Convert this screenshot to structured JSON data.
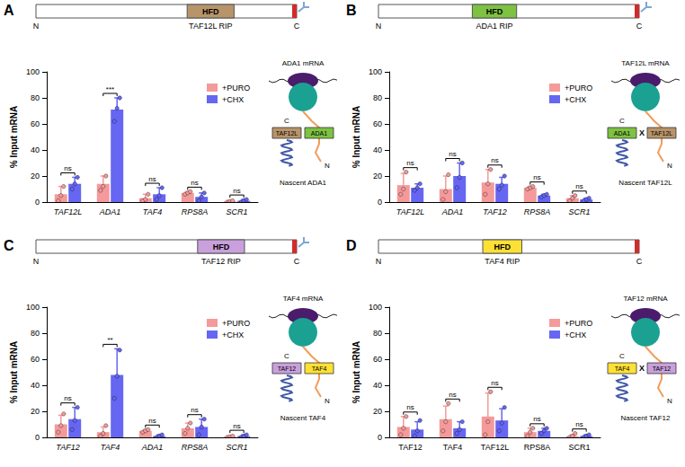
{
  "chart_data": [
    {
      "type": "bar",
      "panel": "A",
      "diagram": {
        "domain": "HFD",
        "label": "TAF12L RIP",
        "n_label": "N",
        "c_label": "C",
        "color": "#b8946a"
      },
      "categories": [
        "TAF12L",
        "ADA1",
        "TAF4",
        "RPS8A",
        "SCR1"
      ],
      "series": [
        {
          "name": "+PURO",
          "color": "#f49a9a",
          "values": [
            6,
            14,
            3,
            7,
            0.5
          ],
          "errors": [
            6,
            6,
            3,
            1,
            0.5
          ],
          "points": [
            [
              1,
              5,
              12
            ],
            [
              9,
              12,
              20
            ],
            [
              1,
              2,
              6
            ],
            [
              6,
              7,
              8
            ],
            [
              0,
              0.5,
              1
            ]
          ]
        },
        {
          "name": "+CHX",
          "color": "#6666f2",
          "values": [
            14,
            71,
            6,
            4,
            1
          ],
          "errors": [
            5,
            9,
            5,
            3,
            1
          ],
          "points": [
            [
              10,
              14,
              19
            ],
            [
              62,
              72,
              80
            ],
            [
              2,
              5,
              11
            ],
            [
              1,
              4,
              7
            ],
            [
              0,
              1,
              2
            ]
          ]
        }
      ],
      "significance": [
        "ns",
        "***",
        "ns",
        "ns",
        "ns"
      ],
      "y_label": "% Input mRNA",
      "ylim": [
        0,
        100
      ],
      "yticks": [
        0,
        20,
        40,
        60,
        80,
        100
      ],
      "grid": false,
      "legend": "top-right",
      "cartoon": {
        "mrna": "ADA1 mRNA",
        "nascent": "Nascent ADA1",
        "c_label": "C",
        "n_label": "N",
        "boxes": [
          {
            "label": "TAF12L",
            "color": "#b8946a"
          },
          {
            "label": "ADA1",
            "color": "#7dc242"
          }
        ]
      }
    },
    {
      "type": "bar",
      "panel": "B",
      "diagram": {
        "domain": "HFD",
        "label": "ADA1 RIP",
        "n_label": "N",
        "c_label": "C",
        "color": "#7dc242"
      },
      "categories": [
        "TAF12L",
        "ADA1",
        "TAF12",
        "RPS8A",
        "SCR1"
      ],
      "series": [
        {
          "name": "+PURO",
          "color": "#f49a9a",
          "values": [
            13,
            10,
            15,
            11,
            3
          ],
          "errors": [
            9,
            10,
            10,
            1,
            2
          ],
          "points": [
            [
              6,
              10,
              23
            ],
            [
              2,
              8,
              21
            ],
            [
              6,
              14,
              25
            ],
            [
              10,
              11,
              12
            ],
            [
              1,
              3,
              5
            ]
          ]
        },
        {
          "name": "+CHX",
          "color": "#6666f2",
          "values": [
            11,
            20,
            14,
            5,
            2
          ],
          "errors": [
            3,
            10,
            5,
            1,
            1
          ],
          "points": [
            [
              9,
              11,
              14
            ],
            [
              11,
              19,
              30
            ],
            [
              10,
              13,
              20
            ],
            [
              4,
              5,
              6
            ],
            [
              1,
              2,
              3
            ]
          ]
        }
      ],
      "significance": [
        "ns",
        "ns",
        "ns",
        "ns",
        "ns"
      ],
      "y_label": "% Input mRNA",
      "ylim": [
        0,
        100
      ],
      "yticks": [
        0,
        20,
        40,
        60,
        80,
        100
      ],
      "grid": false,
      "legend": "top-right",
      "cartoon": {
        "mrna": "TAF12L mRNA",
        "nascent": "Nascent TAF12L",
        "c_label": "C",
        "n_label": "N",
        "no_binding_mark": "X",
        "boxes": [
          {
            "label": "ADA1",
            "color": "#7dc242"
          },
          {
            "label": "TAF12L",
            "color": "#b8946a"
          }
        ]
      }
    },
    {
      "type": "bar",
      "panel": "C",
      "diagram": {
        "domain": "HFD",
        "label": "TAF12 RIP",
        "n_label": "N",
        "c_label": "C",
        "color": "#c9a0dc"
      },
      "categories": [
        "TAF12",
        "TAF4",
        "ADA1",
        "RPS8A",
        "SCR1"
      ],
      "series": [
        {
          "name": "+PURO",
          "color": "#f49a9a",
          "values": [
            10,
            4,
            5,
            7,
            0.5
          ],
          "errors": [
            7,
            4,
            1,
            4,
            0.5
          ],
          "points": [
            [
              4,
              9,
              18
            ],
            [
              1,
              3,
              9
            ],
            [
              4,
              5,
              6
            ],
            [
              3,
              7,
              11
            ],
            [
              0,
              0.5,
              1
            ]
          ]
        },
        {
          "name": "+CHX",
          "color": "#6666f2",
          "values": [
            14,
            48,
            1,
            8,
            1
          ],
          "errors": [
            9,
            20,
            1,
            6,
            1
          ],
          "points": [
            [
              6,
              13,
              23
            ],
            [
              30,
              47,
              67
            ],
            [
              0,
              1,
              2
            ],
            [
              2,
              8,
              14
            ],
            [
              0,
              1,
              2
            ]
          ]
        }
      ],
      "significance": [
        "ns",
        "**",
        "ns",
        "ns",
        "ns"
      ],
      "y_label": "% Input mRNA",
      "ylim": [
        0,
        100
      ],
      "yticks": [
        0,
        20,
        40,
        60,
        80,
        100
      ],
      "grid": false,
      "legend": "top-right",
      "cartoon": {
        "mrna": "TAF4 mRNA",
        "nascent": "Nascent TAF4",
        "c_label": "C",
        "n_label": "N",
        "boxes": [
          {
            "label": "TAF12",
            "color": "#c9a0dc"
          },
          {
            "label": "TAF4",
            "color": "#ffe135"
          }
        ]
      }
    },
    {
      "type": "bar",
      "panel": "D",
      "diagram": {
        "domain": "HFD",
        "label": "TAF4 RIP",
        "n_label": "N",
        "c_label": "C",
        "color": "#ffe135"
      },
      "categories": [
        "TAF12",
        "TAF4",
        "TAF12L",
        "RPS8A",
        "SCR1"
      ],
      "series": [
        {
          "name": "+PURO",
          "color": "#f49a9a",
          "values": [
            8,
            14,
            16,
            4,
            1
          ],
          "errors": [
            8,
            10,
            18,
            3,
            1
          ],
          "points": [
            [
              2,
              7,
              16
            ],
            [
              5,
              12,
              26
            ],
            [
              2,
              12,
              35
            ],
            [
              1,
              4,
              7
            ],
            [
              0,
              1,
              3
            ]
          ]
        },
        {
          "name": "+CHX",
          "color": "#6666f2",
          "values": [
            6,
            7,
            13,
            5,
            1
          ],
          "errors": [
            6,
            5,
            9,
            2,
            1
          ],
          "points": [
            [
              1,
              5,
              13
            ],
            [
              3,
              6,
              12
            ],
            [
              5,
              11,
              23
            ],
            [
              3,
              5,
              7
            ],
            [
              0,
              1,
              2
            ]
          ]
        }
      ],
      "significance": [
        "ns",
        "ns",
        "ns",
        "ns",
        "ns"
      ],
      "y_label": "% Input mRNA",
      "ylim": [
        0,
        100
      ],
      "yticks": [
        0,
        20,
        40,
        60,
        80,
        100
      ],
      "grid": false,
      "legend": "top-right",
      "cartoon": {
        "mrna": "TAF12 mRNA",
        "nascent": "Nascent TAF12",
        "c_label": "C",
        "n_label": "N",
        "no_binding_mark": "X",
        "boxes": [
          {
            "label": "TAF4",
            "color": "#ffe135"
          },
          {
            "label": "TAF12",
            "color": "#c9a0dc"
          }
        ]
      }
    }
  ]
}
